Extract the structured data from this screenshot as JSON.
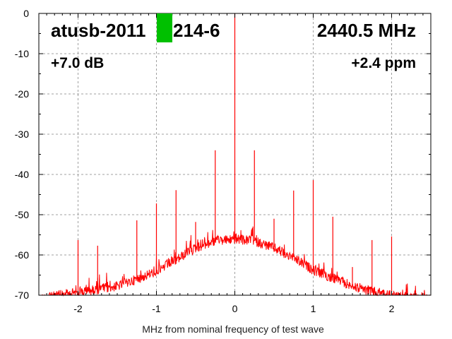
{
  "chart_data": {
    "type": "line",
    "title_left": "atusb-2011",
    "title_left_suffix": "214-6",
    "title_right": "2440.5 MHz",
    "subtitle_left": "+7.0 dB",
    "subtitle_right": "+2.4 ppm",
    "xlabel": "MHz from nominal frequency of test wave",
    "ylabel": "",
    "xlim": [
      -2.5,
      2.5
    ],
    "ylim": [
      -70,
      0
    ],
    "xticks": [
      "-2",
      "-1",
      "0",
      "1",
      "2"
    ],
    "yticks": [
      "0",
      "-10",
      "-20",
      "-30",
      "-40",
      "-50",
      "-60",
      "-70"
    ],
    "grid": true,
    "series_color": "#ff0000",
    "marker_color": "#00c000",
    "noise_floor": {
      "x": [
        -2.5,
        -2.25,
        -2,
        -1.75,
        -1.5,
        -1.25,
        -1,
        -0.75,
        -0.5,
        -0.25,
        0,
        0.25,
        0.5,
        0.75,
        1,
        1.25,
        1.5,
        1.75,
        2,
        2.25,
        2.5
      ],
      "y": [
        -69.8,
        -68.8,
        -68,
        -67.3,
        -66.5,
        -64.8,
        -62.8,
        -60,
        -57,
        -55.3,
        -54.8,
        -55.3,
        -57,
        -59.5,
        -62.5,
        -64.5,
        -66.5,
        -67.8,
        -68.8,
        -69.4,
        -69.8
      ]
    },
    "spurs": {
      "x": [
        -2,
        -1.75,
        -1.25,
        -1,
        -0.75,
        -0.5,
        -0.25,
        0,
        0.25,
        0.5,
        0.75,
        1,
        1.25,
        1.5,
        1.75,
        2
      ],
      "y": [
        -56.3,
        -57.7,
        -51.4,
        -47.2,
        -43.9,
        -51.8,
        -34,
        0,
        -34,
        -51,
        -44,
        -41.4,
        -50.5,
        -63,
        -56.3,
        -55.4
      ]
    }
  }
}
